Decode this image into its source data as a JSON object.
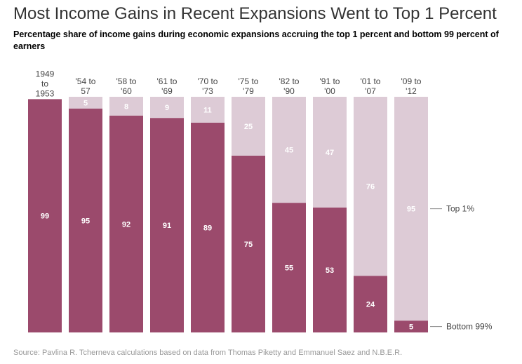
{
  "title": "Most Income Gains in Recent Expansions Went to Top 1 Percent",
  "subtitle": "Percentage share of income gains during economic expansions accruing the top 1 percent and bottom 99 percent of earners",
  "source": "Source: Pavlina R. Tcherneva calculations based on data from Thomas Piketty and Emmanuel Saez and N.B.E.R.",
  "colors": {
    "bottom": "#9b4a6c",
    "top": "#ddcbd6",
    "label": "#ffffff",
    "axis_text": "#444444"
  },
  "chart_data": {
    "type": "bar",
    "stacked": true,
    "categories": [
      [
        "1949",
        "to",
        "1953"
      ],
      [
        "'54 to",
        "57"
      ],
      [
        "'58 to",
        "'60"
      ],
      [
        "'61 to",
        "'69"
      ],
      [
        "'70 to",
        "'73"
      ],
      [
        "'75 to",
        "'79"
      ],
      [
        "'82 to",
        "'90"
      ],
      [
        "'91 to",
        "'00"
      ],
      [
        "'01 to",
        "'07"
      ],
      [
        "'09 to",
        "'12"
      ]
    ],
    "series": [
      {
        "name": "Bottom 99%",
        "values": [
          99,
          95,
          92,
          91,
          89,
          75,
          55,
          53,
          24,
          5
        ]
      },
      {
        "name": "Top 1%",
        "values": [
          null,
          5,
          8,
          9,
          11,
          25,
          45,
          47,
          76,
          95
        ]
      }
    ],
    "ylim": [
      0,
      100
    ]
  }
}
